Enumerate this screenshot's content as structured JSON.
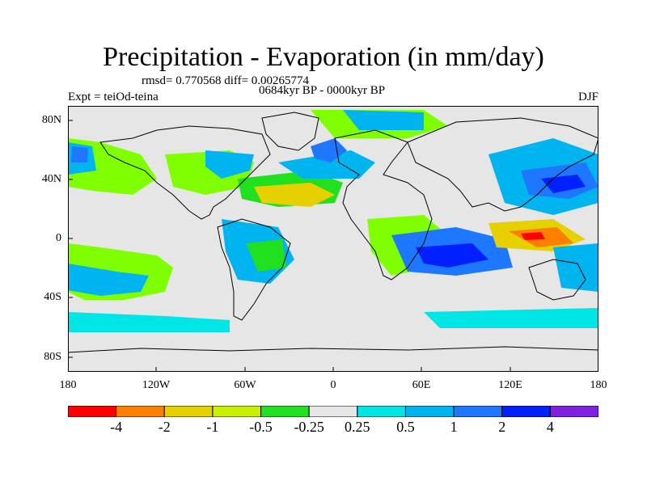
{
  "title": "Precipitation - Evaporation (in mm/day)",
  "stats": "rmsd= 0.770568 diff= 0.00265774",
  "subtitle": "0684kyr BP - 0000kyr BP",
  "left_label": "Expt = teiOd-teina",
  "right_label": "DJF",
  "y_ticks": [
    "80N",
    "40N",
    "0",
    "40S",
    "80S"
  ],
  "x_ticks": [
    "180",
    "120W",
    "60W",
    "0",
    "60E",
    "120E",
    "180"
  ],
  "colorbar": {
    "colors": [
      "#ff0000",
      "#ff8000",
      "#e6d000",
      "#c8f000",
      "#80ff00",
      "#20e020",
      "#e6e6e6",
      "#00e6e6",
      "#00b4f0",
      "#1e78ff",
      "#0020ff",
      "#1e1ed2",
      "#8020e0"
    ],
    "labels": [
      "-4",
      "-2",
      "-1",
      "-0.5",
      "-0.25",
      "0.25",
      "0.5",
      "1",
      "2",
      "4"
    ]
  },
  "map_background": "#e6e6e6"
}
